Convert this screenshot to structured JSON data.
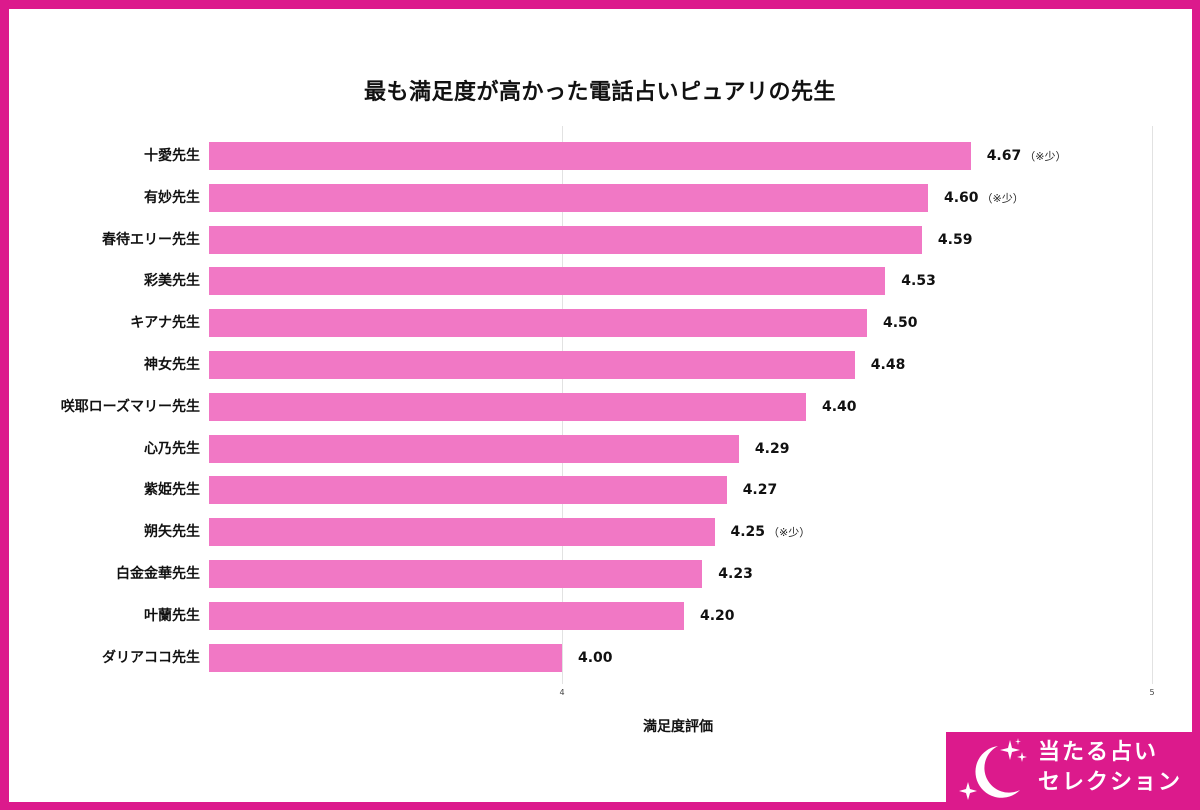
{
  "chart_data": {
    "type": "bar",
    "orientation": "horizontal",
    "title": "最も満足度が高かった電話占いピュアリの先生",
    "xlabel": "満足度評価",
    "ylabel": "",
    "xlim": [
      3.4,
      5
    ],
    "ticks": [
      "4",
      "5"
    ],
    "grid": true,
    "legend": null,
    "categories": [
      "十愛先生",
      "有妙先生",
      "春待エリー先生",
      "彩美先生",
      "キアナ先生",
      "神女先生",
      "咲耶ローズマリー先生",
      "心乃先生",
      "紫姫先生",
      "朔矢先生",
      "白金金華先生",
      "叶蘭先生",
      "ダリアココ先生"
    ],
    "values": [
      4.67,
      4.6,
      4.59,
      4.53,
      4.5,
      4.48,
      4.4,
      4.29,
      4.27,
      4.25,
      4.23,
      4.2,
      4.0
    ],
    "value_labels": [
      "4.67",
      "4.60",
      "4.59",
      "4.53",
      "4.50",
      "4.48",
      "4.40",
      "4.29",
      "4.27",
      "4.25",
      "4.23",
      "4.20",
      "4.00"
    ],
    "annotations": [
      "（※少）",
      "（※少）",
      "",
      "",
      "",
      "",
      "",
      "",
      "",
      "（※少）",
      "",
      "",
      ""
    ],
    "bar_color": "#f178c5"
  },
  "brand": {
    "line1": "当たる占い",
    "line2": "セレクション",
    "color": "#dc1a8c",
    "icon": "moon-stars-icon"
  }
}
